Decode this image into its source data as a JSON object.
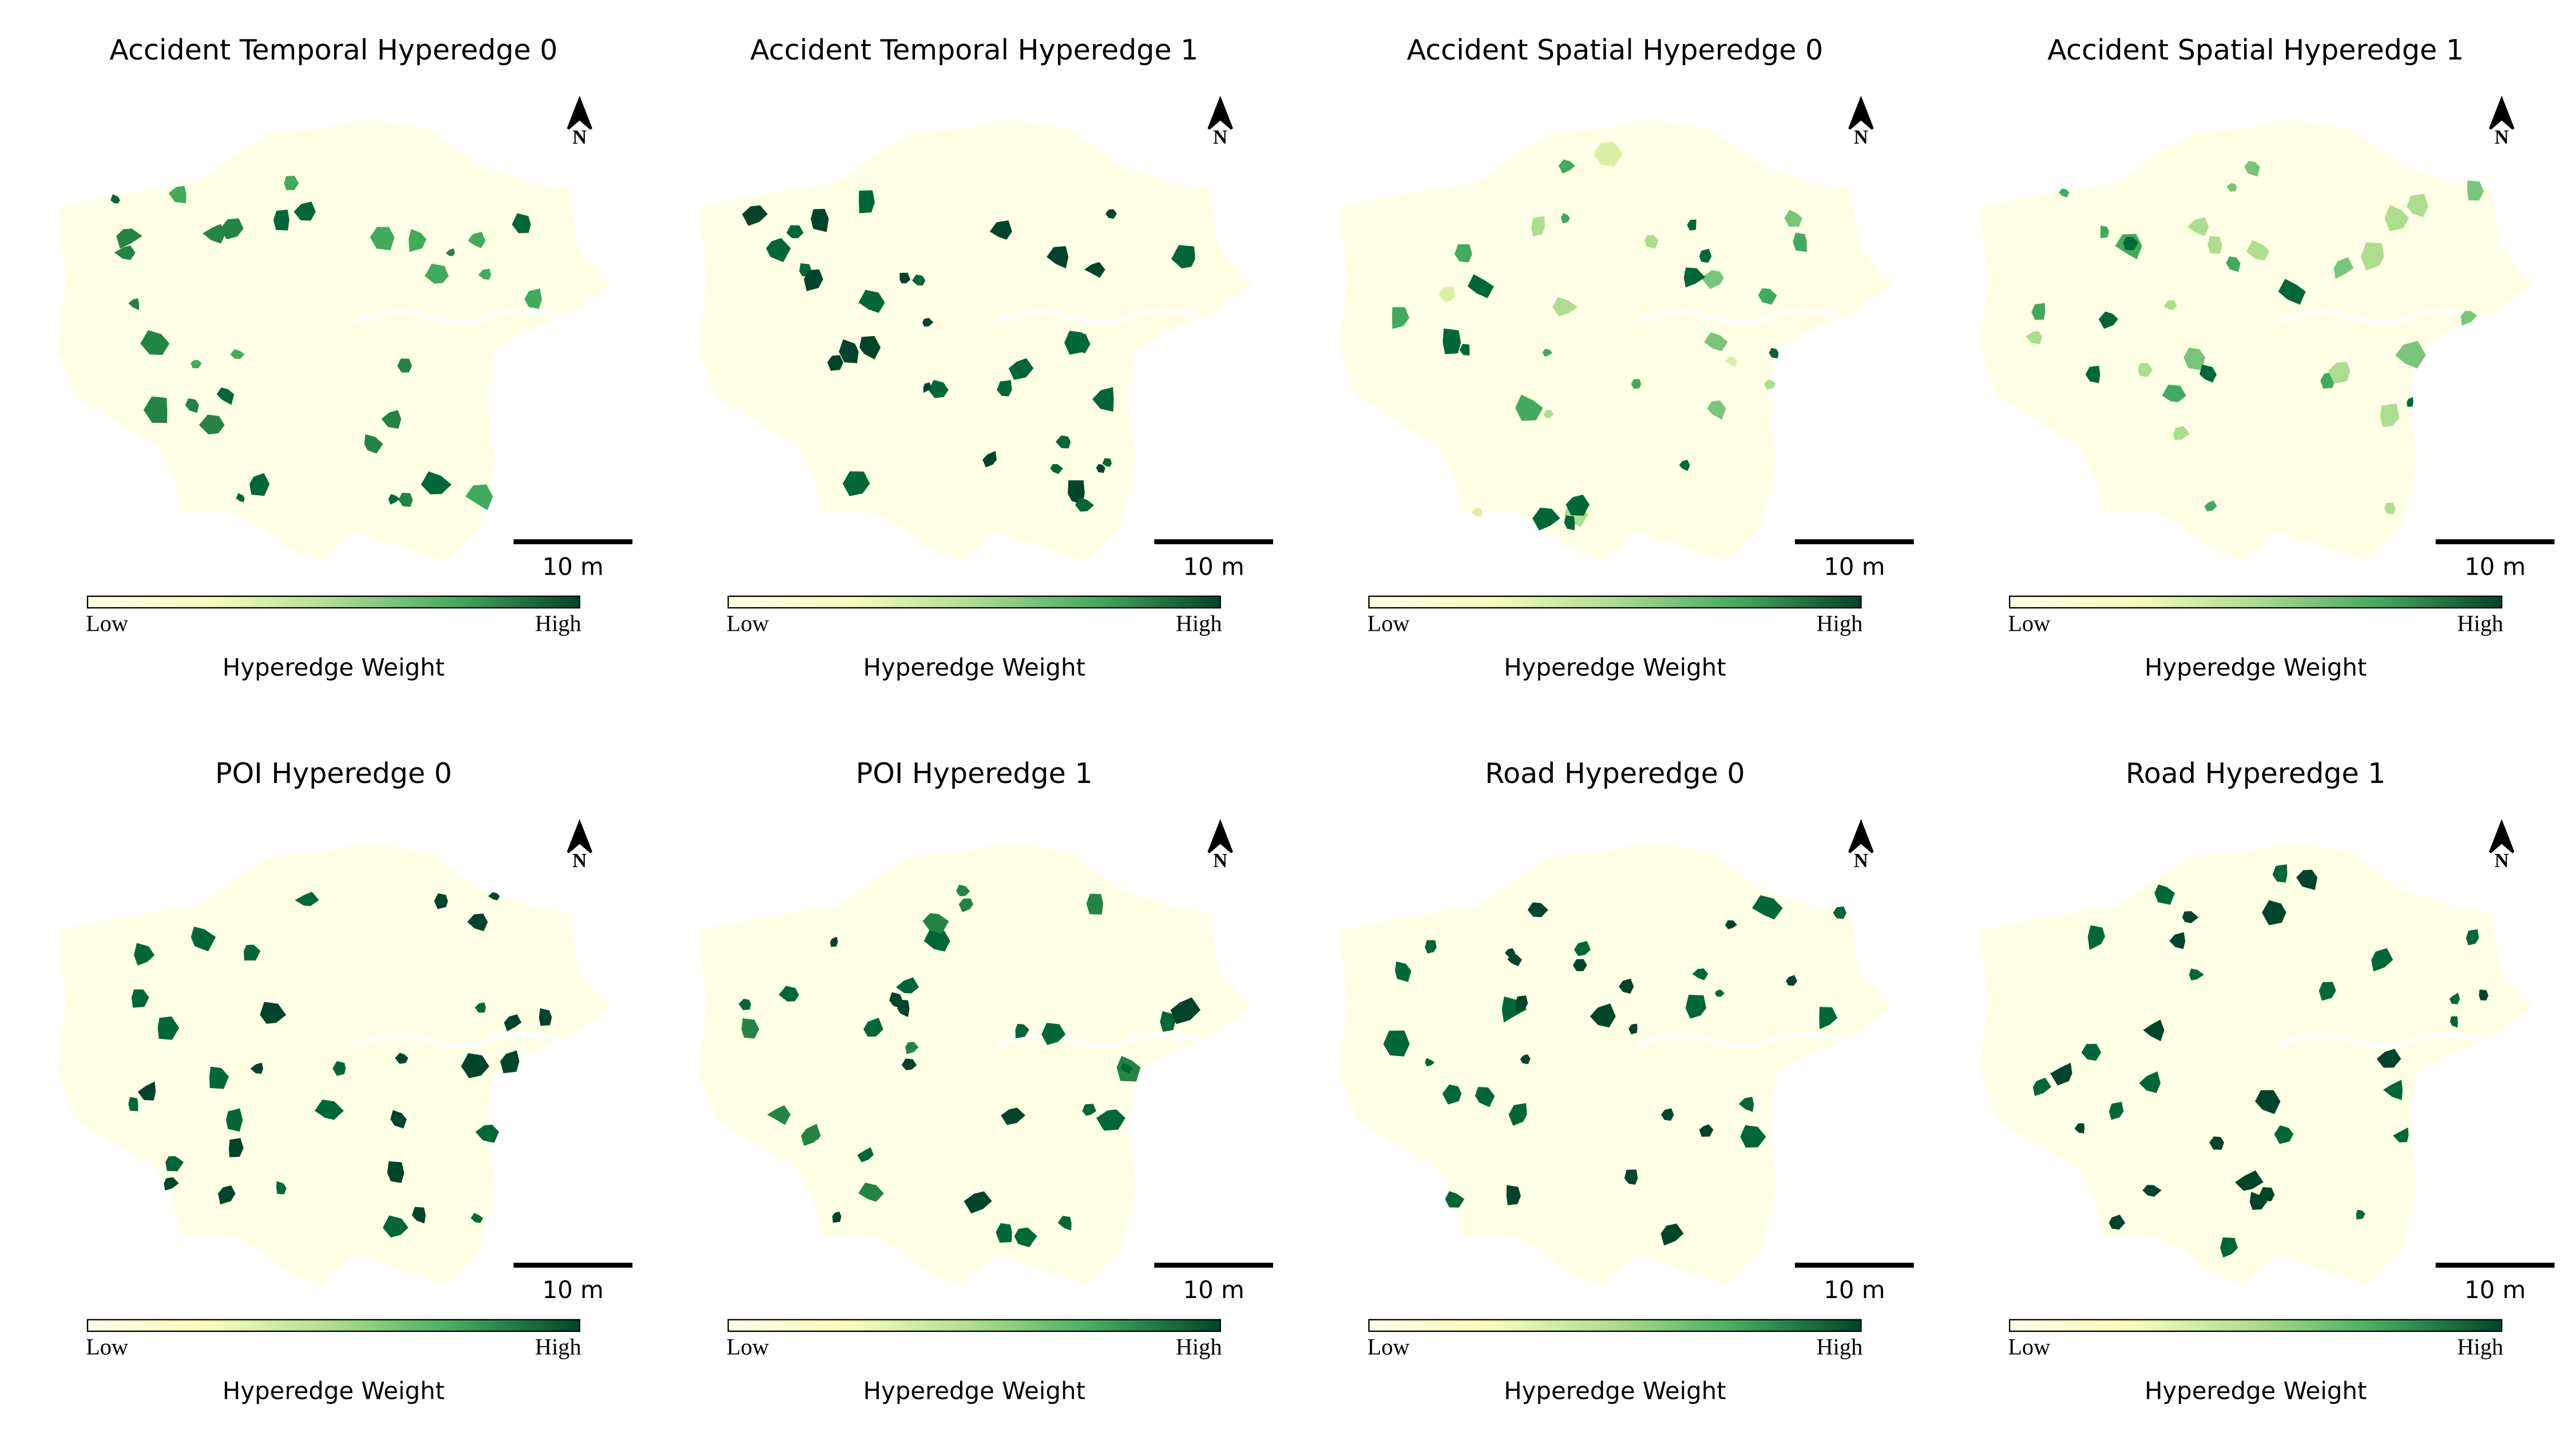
{
  "panels": [
    {
      "title": "Accident Temporal Hyperedge 0",
      "north": "N",
      "scale_label": "10 m",
      "colorbar": {
        "low": "Low",
        "high": "High",
        "label": "Hyperedge Weight"
      }
    },
    {
      "title": "Accident Temporal Hyperedge 1",
      "north": "N",
      "scale_label": "10 m",
      "colorbar": {
        "low": "Low",
        "high": "High",
        "label": "Hyperedge Weight"
      }
    },
    {
      "title": "Accident Spatial Hyperedge 0",
      "north": "N",
      "scale_label": "10 m",
      "colorbar": {
        "low": "Low",
        "high": "High",
        "label": "Hyperedge Weight"
      }
    },
    {
      "title": "Accident Spatial Hyperedge 1",
      "north": "N",
      "scale_label": "10 m",
      "colorbar": {
        "low": "Low",
        "high": "High",
        "label": "Hyperedge Weight"
      }
    },
    {
      "title": "POI Hyperedge 0",
      "north": "N",
      "scale_label": "10 m",
      "colorbar": {
        "low": "Low",
        "high": "High",
        "label": "Hyperedge Weight"
      }
    },
    {
      "title": "POI Hyperedge 1",
      "north": "N",
      "scale_label": "10 m",
      "colorbar": {
        "low": "Low",
        "high": "High",
        "label": "Hyperedge Weight"
      }
    },
    {
      "title": "Road Hyperedge 0",
      "north": "N",
      "scale_label": "10 m",
      "colorbar": {
        "low": "Low",
        "high": "High",
        "label": "Hyperedge Weight"
      }
    },
    {
      "title": "Road Hyperedge 1",
      "north": "N",
      "scale_label": "10 m",
      "colorbar": {
        "low": "Low",
        "high": "High",
        "label": "Hyperedge Weight"
      }
    }
  ]
}
